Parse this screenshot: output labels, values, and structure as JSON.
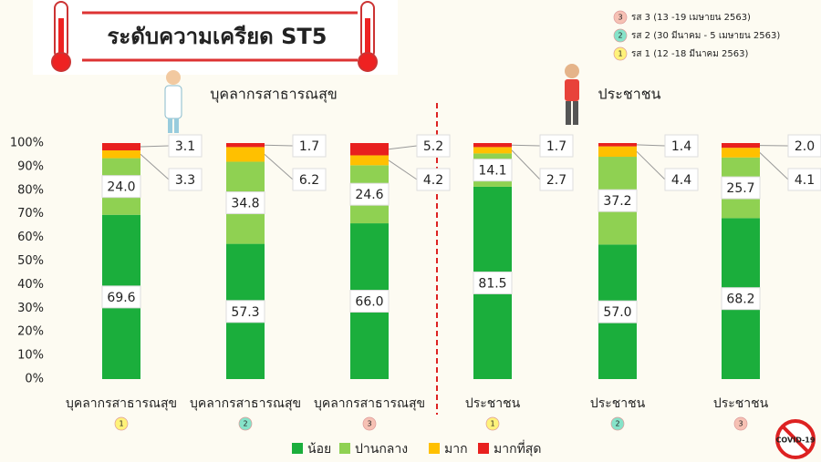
{
  "chart_data": {
    "type": "stacked_bar_100",
    "title": "ระดับความเครียด ST5",
    "group_labels": [
      "บุคลากรสาธารณสุข",
      "ประชาชน"
    ],
    "categories": [
      "บุคลากรสาธารณสุข",
      "บุคลากรสาธารณสุข",
      "บุคลากรสาธารณสุข",
      "ประชาชน",
      "ประชาชน",
      "ประชาชน"
    ],
    "category_badges": [
      "1",
      "2",
      "3",
      "1",
      "2",
      "3"
    ],
    "round_legend": [
      {
        "badge": "3",
        "label": "รส 3 (13 -19 เมษายน 2563)",
        "color": "#f6c1b4"
      },
      {
        "badge": "2",
        "label": "รส 2 (30 มีนาคม - 5 เมษายน 2563)",
        "color": "#86e3c9"
      },
      {
        "badge": "1",
        "label": "รส 1 (12 -18 มีนาคม 2563)",
        "color": "#fff27a"
      }
    ],
    "series": [
      {
        "name": "น้อย",
        "color": "#1bae3c",
        "values": [
          69.6,
          57.3,
          66.0,
          81.5,
          57.0,
          68.2
        ],
        "value_labels": [
          "69.6",
          "57.3",
          "66.0",
          "81.5",
          "57.0",
          "68.2"
        ]
      },
      {
        "name": "ปานกลาง",
        "color": "#8fd152",
        "values": [
          24.0,
          34.8,
          24.6,
          14.1,
          37.2,
          25.7
        ],
        "value_labels": [
          "24.0",
          "34.8",
          "24.6",
          "14.1",
          "37.2",
          "25.7"
        ]
      },
      {
        "name": "มาก",
        "color": "#ffc000",
        "values": [
          3.3,
          6.2,
          4.2,
          2.7,
          4.4,
          4.1
        ],
        "value_labels": [
          "3.3",
          "6.2",
          "4.2",
          "2.7",
          "4.4",
          "4.1"
        ]
      },
      {
        "name": "มากที่สุด",
        "color": "#e8201e",
        "values": [
          3.1,
          1.7,
          5.2,
          1.7,
          1.4,
          2.0
        ],
        "value_labels": [
          "3.1",
          "1.7",
          "5.2",
          "1.7",
          "1.4",
          "2.0"
        ]
      }
    ],
    "ylim": [
      0,
      100
    ],
    "yticks": [
      {
        "value": 0,
        "label": "0%"
      },
      {
        "value": 10,
        "label": "10%"
      },
      {
        "value": 20,
        "label": "20%"
      },
      {
        "value": 30,
        "label": "30%"
      },
      {
        "value": 40,
        "label": "40%"
      },
      {
        "value": 50,
        "label": "50%"
      },
      {
        "value": 60,
        "label": "60%"
      },
      {
        "value": 70,
        "label": "70%"
      },
      {
        "value": 80,
        "label": "80%"
      },
      {
        "value": 90,
        "label": "90%"
      },
      {
        "value": 100,
        "label": "100%"
      }
    ],
    "badge_icon": "COVID-19"
  }
}
